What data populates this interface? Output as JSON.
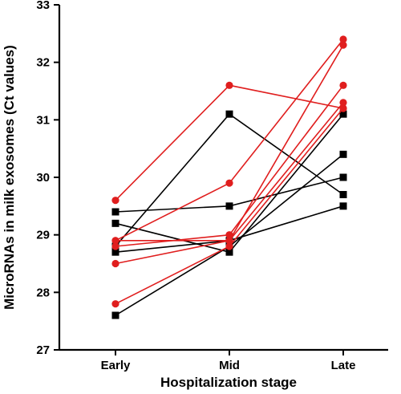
{
  "chart_data": {
    "type": "line",
    "categories": [
      "Early",
      "Mid",
      "Late"
    ],
    "xlabel": "Hospitalization stage",
    "ylabel": "MicroRNAs in milk exosomes (Ct values)",
    "ylim": [
      27,
      33
    ],
    "yticks": [
      27,
      28,
      29,
      30,
      31,
      32,
      33
    ],
    "grid": false,
    "colors": {
      "black_group": "#000000",
      "red_group": "#e01e1e"
    },
    "series": [
      {
        "group": "black",
        "marker": "square",
        "values": [
          29.4,
          29.5,
          30.0
        ]
      },
      {
        "group": "black",
        "marker": "square",
        "values": [
          29.2,
          28.7,
          31.1
        ]
      },
      {
        "group": "black",
        "marker": "square",
        "values": [
          28.8,
          31.1,
          29.7
        ]
      },
      {
        "group": "black",
        "marker": "square",
        "values": [
          28.7,
          28.9,
          29.5
        ]
      },
      {
        "group": "black",
        "marker": "square",
        "values": [
          27.6,
          28.8,
          30.4
        ]
      },
      {
        "group": "red",
        "marker": "circle",
        "values": [
          29.6,
          31.6,
          31.2
        ]
      },
      {
        "group": "red",
        "marker": "circle",
        "values": [
          28.9,
          29.9,
          32.4
        ]
      },
      {
        "group": "red",
        "marker": "circle",
        "values": [
          28.9,
          28.9,
          32.3
        ]
      },
      {
        "group": "red",
        "marker": "circle",
        "values": [
          28.8,
          29.0,
          31.6
        ]
      },
      {
        "group": "red",
        "marker": "circle",
        "values": [
          28.5,
          28.9,
          31.3
        ]
      },
      {
        "group": "red",
        "marker": "circle",
        "values": [
          27.8,
          28.8,
          31.2
        ]
      }
    ]
  }
}
